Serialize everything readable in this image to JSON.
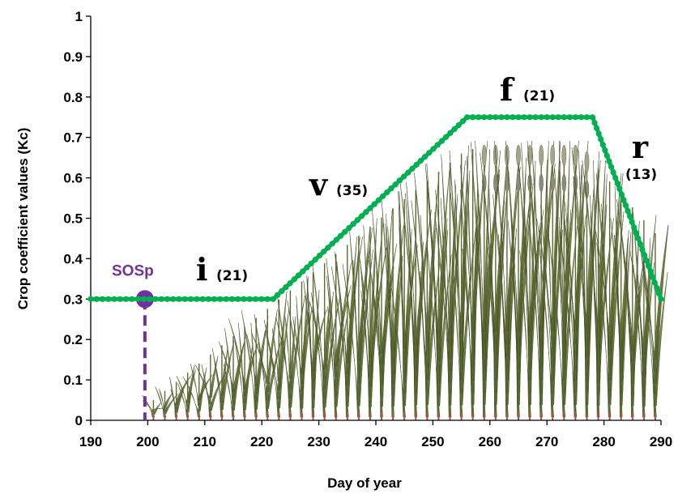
{
  "chart_data": {
    "type": "line",
    "title": "",
    "xlabel": "Day of year",
    "ylabel": "Crop coefficient values (Kc)",
    "xlim": [
      190,
      290
    ],
    "ylim": [
      0,
      1
    ],
    "x_ticks": [
      "190",
      "200",
      "210",
      "220",
      "230",
      "240",
      "250",
      "260",
      "270",
      "280",
      "290"
    ],
    "y_ticks": [
      "0",
      "0.1",
      "0.2",
      "0.3",
      "0.4",
      "0.5",
      "0.6",
      "0.7",
      "0.8",
      "0.9",
      "1"
    ],
    "grid": false,
    "series": [
      {
        "name": "",
        "color": "#00b050",
        "marker": "circle",
        "x": [
          190,
          222,
          256,
          278,
          290
        ],
        "y": [
          0.3,
          0.3,
          0.75,
          0.75,
          0.3
        ]
      }
    ],
    "stages": [
      {
        "letter": "i",
        "days": "(21)"
      },
      {
        "letter": "v",
        "days": "(35)"
      },
      {
        "letter": "f",
        "days": "(21)"
      },
      {
        "letter": "r",
        "days": "(13)"
      }
    ],
    "annotation": {
      "label": "SOSp",
      "x": 199.5,
      "y": 0.3,
      "color": "#7030a0"
    },
    "illustration": "growing-wheat-plants"
  }
}
